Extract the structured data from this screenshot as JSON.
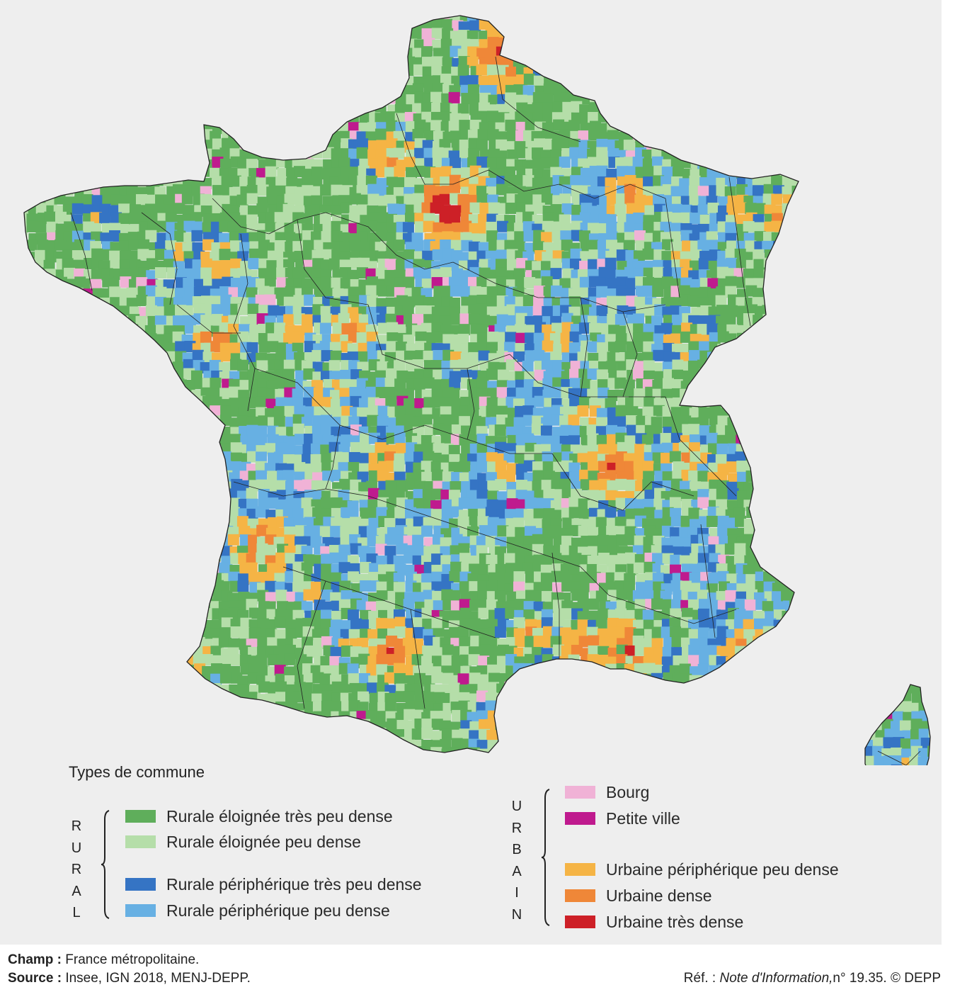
{
  "legend": {
    "title": "Types de commune",
    "rural_label": [
      "R",
      "U",
      "R",
      "A",
      "L"
    ],
    "urbain_label": [
      "U",
      "R",
      "B",
      "A",
      "I",
      "N"
    ],
    "rural_items": [
      {
        "label": "Rurale éloignée très peu dense",
        "color": "#5fae5b"
      },
      {
        "label": "Rurale éloignée peu dense",
        "color": "#b5dea9"
      },
      {
        "label": "Rurale périphérique très peu dense",
        "color": "#3574c4"
      },
      {
        "label": "Rurale périphérique peu dense",
        "color": "#67b0e3"
      }
    ],
    "urbain_items": [
      {
        "label": "Bourg",
        "color": "#f0b2d6"
      },
      {
        "label": "Petite ville",
        "color": "#bf1a8e"
      },
      {
        "label": "Urbaine périphérique peu dense",
        "color": "#f5b445"
      },
      {
        "label": "Urbaine dense",
        "color": "#ef8738"
      },
      {
        "label": "Urbaine très dense",
        "color": "#cd2027"
      }
    ]
  },
  "footer": {
    "champ_label": "Champ :",
    "champ_text": "France métropolitaine.",
    "source_label": "Source :",
    "source_text": "Insee, IGN 2018, MENJ-DEPP.",
    "ref_prefix": "Réf. : ",
    "ref_title": "Note d'Information,",
    "ref_suffix": "n° 19.35. © DEPP"
  },
  "colors": {
    "background_panel": "#eeeeee",
    "border_lines": "#222222"
  }
}
